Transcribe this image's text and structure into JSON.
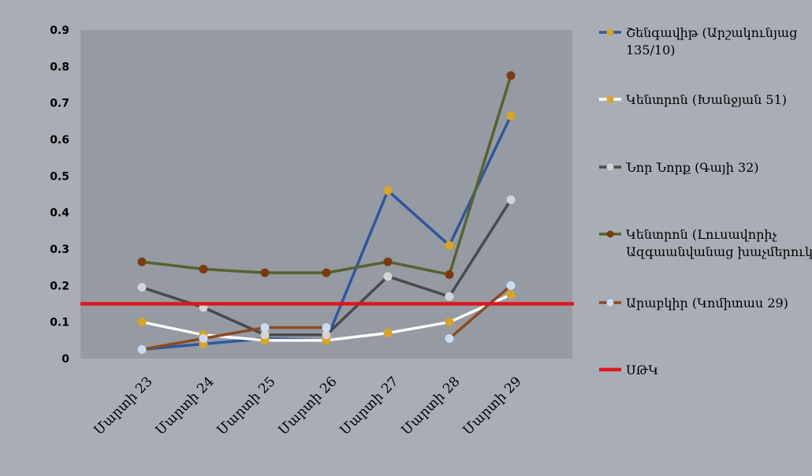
{
  "chart_data": {
    "type": "line",
    "title": "",
    "xlabel": "",
    "ylabel": "",
    "categories": [
      "Մարտի 23",
      "Մարտի 24",
      "Մարտի 25",
      "Մարտի 26",
      "Մարտի 27",
      "Մարտի 28",
      "Մարտի 29"
    ],
    "yticks": [
      "0",
      "0.1",
      "0.2",
      "0.3",
      "0.4",
      "0.5",
      "0.6",
      "0.7",
      "0.8",
      "0.9"
    ],
    "ylim": [
      0,
      0.9
    ],
    "grid": false,
    "legend_position": "right",
    "series": [
      {
        "name_lines": [
          "Շենգավիթ (Արշակունյաց",
          "135/10)"
        ],
        "line_color": "#2f56a0",
        "marker_color": "#d9a421",
        "values": [
          0.025,
          0.04,
          0.055,
          0.05,
          0.46,
          0.31,
          0.665
        ]
      },
      {
        "name_lines": [
          "Կենտրոն (Խանջյան 51)"
        ],
        "line_color": "#ffffff",
        "marker_color": "#d9a421",
        "values": [
          0.1,
          0.065,
          0.05,
          0.05,
          0.07,
          0.1,
          0.175
        ]
      },
      {
        "name_lines": [
          "Նոր Նորք (Գայի 32)"
        ],
        "line_color": "#4a4a4a",
        "marker_color": "#d4d4d4",
        "values": [
          0.195,
          0.14,
          0.065,
          0.065,
          0.225,
          0.17,
          0.435
        ]
      },
      {
        "name_lines": [
          "Կենտրոն (Լուսավորիչ",
          "Ազգաանվանաց խաչմերուկ)"
        ],
        "line_color": "#55632c",
        "marker_color": "#7b3a10",
        "values": [
          0.265,
          0.245,
          0.235,
          0.235,
          0.265,
          0.23,
          0.775
        ]
      },
      {
        "name_lines": [
          "Արաբկիր (Կոմիտաս 29)"
        ],
        "line_color": "#8c4a1f",
        "marker_color": "#c9dcf2",
        "values": [
          0.025,
          0.055,
          0.085,
          0.085,
          null,
          0.055,
          0.2
        ]
      }
    ],
    "reference_line": {
      "name": "ՍԹԿ",
      "value": 0.15,
      "color": "#e0161b"
    }
  }
}
